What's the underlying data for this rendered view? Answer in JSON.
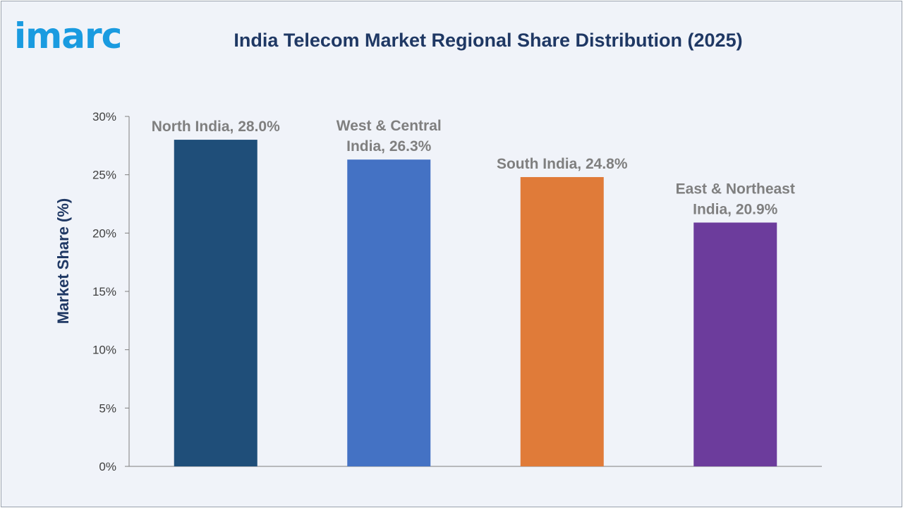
{
  "header": {
    "logo_text": "imarc",
    "title": "India Telecom Market Regional Share Distribution (2025)"
  },
  "colors": {
    "axis": "#7f7f7f",
    "tick_text": "#404040",
    "label_text": "#7f7f7f",
    "title": "#1f3864",
    "logo": "#1a9be0"
  },
  "chart_data": {
    "type": "bar",
    "categories": [
      "North India",
      "West & Central India",
      "South India",
      "East & Northeast India"
    ],
    "values": [
      28.0,
      26.3,
      24.8,
      20.9
    ],
    "data_labels": [
      [
        "North India, 28.0%"
      ],
      [
        "West & Central",
        "India, 26.3%"
      ],
      [
        "South India, 24.8%"
      ],
      [
        "East & Northeast",
        "India, 20.9%"
      ]
    ],
    "bar_colors": [
      "#1f4e79",
      "#4472c4",
      "#e07b39",
      "#6c3c9c"
    ],
    "title": "India Telecom Market Regional Share Distribution (2025)",
    "xlabel": "",
    "ylabel": "Market Share (%)",
    "ylim": [
      0,
      30
    ],
    "yticks": [
      "0%",
      "5%",
      "10%",
      "15%",
      "20%",
      "25%",
      "30%"
    ],
    "ytick_values": [
      0,
      5,
      10,
      15,
      20,
      25,
      30
    ],
    "grid": false,
    "legend": "none"
  }
}
